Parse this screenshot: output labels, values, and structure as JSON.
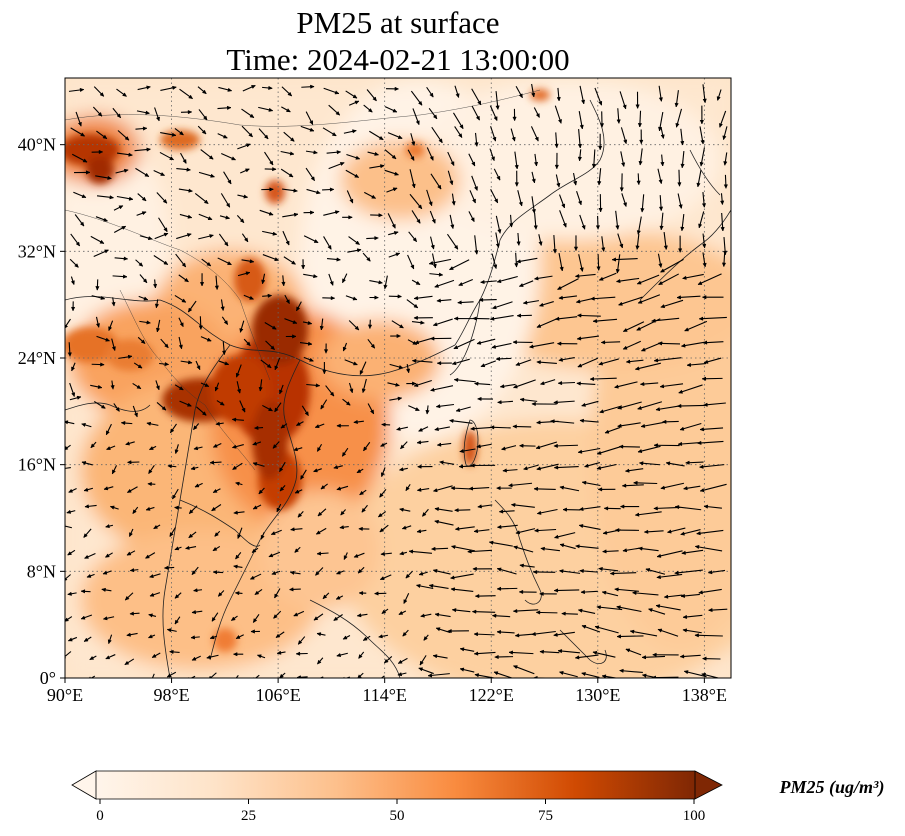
{
  "map": {
    "title_line1": "PM25 at surface",
    "title_line2": "Time: 2024-02-21 13:00:00",
    "lon_ticks": [
      "90°E",
      "98°E",
      "106°E",
      "114°E",
      "122°E",
      "130°E",
      "138°E"
    ],
    "lat_ticks": [
      "0°",
      "8°N",
      "16°N",
      "24°N",
      "32°N",
      "40°N"
    ],
    "lon_values": [
      90,
      98,
      106,
      114,
      122,
      130,
      138
    ],
    "lat_values": [
      0,
      8,
      16,
      24,
      32,
      40
    ],
    "extent": {
      "lon_min": 90,
      "lon_max": 140,
      "lat_min": 0,
      "lat_max": 45
    },
    "gridlines": true
  },
  "colorbar": {
    "label": "PM25 (ug/m³)",
    "ticks": [
      "0",
      "25",
      "50",
      "75",
      "100"
    ],
    "tick_values": [
      0,
      25,
      50,
      75,
      100
    ],
    "min": 0,
    "max": 100,
    "extend": "both",
    "colors": [
      "#fff5eb",
      "#fdd9b4",
      "#fdb06f",
      "#f3701b",
      "#c94402",
      "#7f2704"
    ]
  },
  "chart_data": {
    "type": "heatmap",
    "variable": "PM25",
    "units": "ug/m3",
    "hotspots": [
      {
        "lon": 105.5,
        "lat": 21.5,
        "value": 100
      },
      {
        "lon": 100.5,
        "lat": 20.5,
        "value": 90
      },
      {
        "lon": 106.0,
        "lat": 26.0,
        "value": 95
      },
      {
        "lon": 106.0,
        "lat": 15.0,
        "value": 85
      },
      {
        "lon": 92.5,
        "lat": 39.5,
        "value": 90
      },
      {
        "lon": 92.0,
        "lat": 25.0,
        "value": 60
      },
      {
        "lon": 103.5,
        "lat": 28.5,
        "value": 70
      },
      {
        "lon": 120.5,
        "lat": 17.5,
        "value": 65
      }
    ]
  }
}
